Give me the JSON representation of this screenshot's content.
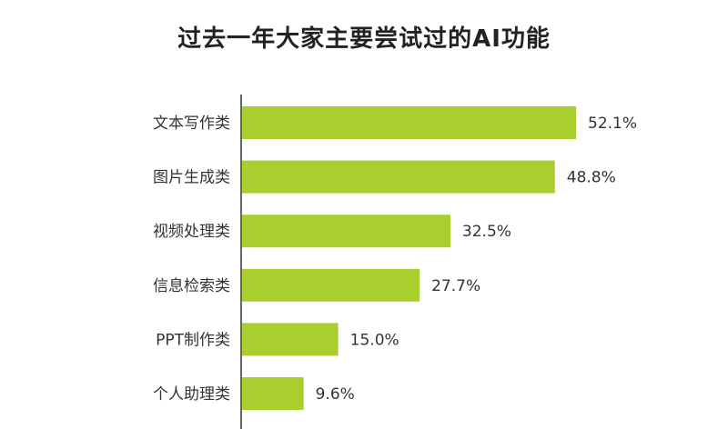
{
  "chart_data": {
    "type": "bar",
    "orientation": "horizontal",
    "title": "过去一年大家主要尝试过的AI功能",
    "categories": [
      "文本写作类",
      "图片生成类",
      "视频处理类",
      "信息检索类",
      "PPT制作类",
      "个人助理类"
    ],
    "values": [
      52.1,
      48.8,
      32.5,
      27.7,
      15.0,
      9.6
    ],
    "value_labels": [
      "52.1%",
      "48.8%",
      "32.5%",
      "27.7%",
      "15.0%",
      "9.6%"
    ],
    "xlabel": "",
    "ylabel": "",
    "xlim": [
      0,
      60
    ],
    "grid": false,
    "legend": "none",
    "bar_color": "#a9cf2f"
  }
}
